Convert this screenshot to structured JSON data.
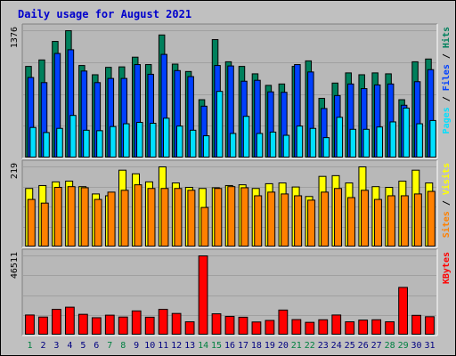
{
  "chart_data": {
    "title": "Daily usage for August 2021",
    "type": "bar",
    "x": [
      "1",
      "2",
      "3",
      "4",
      "5",
      "6",
      "7",
      "8",
      "9",
      "10",
      "11",
      "12",
      "13",
      "14",
      "15",
      "16",
      "17",
      "18",
      "19",
      "20",
      "21",
      "22",
      "23",
      "24",
      "25",
      "26",
      "27",
      "28",
      "29",
      "30",
      "31"
    ],
    "weekend_x": [
      "1",
      "7",
      "8",
      "14",
      "15",
      "21",
      "22",
      "28",
      "29"
    ],
    "colors": {
      "background": "#c0c0c0",
      "plot_background": "#b8b8b8",
      "title": "#0000cc",
      "hits": "#00805c",
      "files": "#0040ff",
      "pages": "#00e0ff",
      "visits": "#ffff00",
      "sites": "#ff8000",
      "kbytes": "#ff0000",
      "weekday_label": "#000080",
      "weekend_label": "#008040"
    },
    "panels": [
      {
        "id": "hits-files-pages",
        "max_label": "1376",
        "ymax": 1376,
        "legend": [
          {
            "text": "Hits",
            "color_key": "hits"
          },
          {
            "text": "Files",
            "color_key": "files"
          },
          {
            "text": "Pages",
            "color_key": "pages"
          }
        ],
        "separator": " / ",
        "series": [
          {
            "name": "Hits",
            "color_key": "hits",
            "values": [
              990,
              1060,
              1260,
              1376,
              1000,
              900,
              980,
              985,
              1090,
              1010,
              1330,
              1015,
              935,
              630,
              1280,
              1040,
              990,
              910,
              785,
              800,
              990,
              1050,
              645,
              810,
              920,
              900,
              920,
              910,
              630,
              1040,
              1070
            ]
          },
          {
            "name": "Files",
            "color_key": "files",
            "values": [
              870,
              815,
              1130,
              1170,
              940,
              815,
              860,
              860,
              1010,
              905,
              1120,
              945,
              880,
              560,
              1000,
              995,
              830,
              840,
              715,
              710,
              1010,
              930,
              535,
              675,
              800,
              750,
              790,
              800,
              570,
              825,
              955
            ]
          },
          {
            "name": "Pages",
            "color_key": "pages",
            "values": [
              330,
              275,
              320,
              460,
              300,
              295,
              340,
              370,
              385,
              375,
              430,
              345,
              300,
              240,
              720,
              265,
              450,
              265,
              280,
              245,
              345,
              320,
              220,
              440,
              310,
              310,
              335,
              390,
              540,
              370,
              405
            ]
          }
        ]
      },
      {
        "id": "visits-sites",
        "max_label": "219",
        "ymax": 219,
        "legend": [
          {
            "text": "Visits",
            "color_key": "visits"
          },
          {
            "text": "Sites",
            "color_key": "sites"
          }
        ],
        "separator": " / ",
        "series": [
          {
            "name": "Visits",
            "color_key": "visits",
            "values": [
              160,
              168,
              178,
              180,
              165,
              145,
              140,
              210,
              200,
              178,
              219,
              175,
              163,
              160,
              162,
              168,
              170,
              160,
              173,
              175,
              164,
              138,
              193,
              195,
              175,
              219,
              165,
              163,
              180,
              210,
              175
            ]
          },
          {
            "name": "Sites",
            "color_key": "sites",
            "values": [
              130,
              120,
              163,
              165,
              162,
              130,
              150,
              155,
              170,
              160,
              160,
              160,
              155,
              108,
              160,
              165,
              162,
              140,
              150,
              145,
              140,
              128,
              150,
              160,
              135,
              155,
              130,
              140,
              140,
              145,
              152
            ]
          }
        ]
      },
      {
        "id": "kbytes",
        "max_label": "46511",
        "ymax": 46511,
        "legend": [
          {
            "text": "KBytes",
            "color_key": "kbytes"
          }
        ],
        "separator": "",
        "series": [
          {
            "name": "KBytes",
            "color_key": "kbytes",
            "values": [
              11800,
              10600,
              15100,
              16400,
              12200,
              10200,
              11700,
              10600,
              14200,
              10500,
              15100,
              12700,
              7800,
              46511,
              12500,
              11000,
              10500,
              7700,
              8600,
              14700,
              9100,
              7500,
              9000,
              11800,
              7800,
              8800,
              9000,
              7800,
              28000,
              11600,
              10800
            ]
          }
        ]
      }
    ]
  }
}
